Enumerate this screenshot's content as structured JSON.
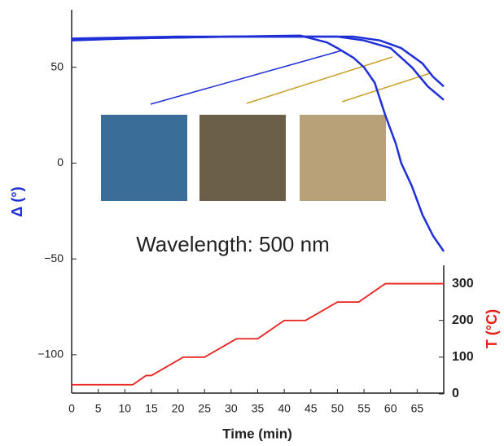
{
  "chart_data": {
    "type": "line",
    "annotation": "Wavelength: 500 nm",
    "xlabel": "Time (min)",
    "ylabel": "Δ (°)",
    "y2label": "T (°C)",
    "xlim": [
      0,
      70
    ],
    "xticks": [
      0,
      5,
      10,
      15,
      20,
      25,
      30,
      35,
      40,
      45,
      50,
      55,
      60,
      65
    ],
    "ylim": [
      -120,
      80
    ],
    "yticks": [
      {
        "value": -100,
        "label": "−100"
      },
      {
        "value": -50,
        "label": "−50"
      },
      0,
      50
    ],
    "y2lim": [
      0,
      350
    ],
    "y2ticks": [
      0,
      100,
      200,
      300
    ],
    "series": [
      {
        "color": "#1f2fd6",
        "x": [
          0,
          10,
          20,
          30,
          43,
          48,
          50,
          53,
          55,
          57,
          59,
          61,
          62,
          64,
          66,
          68,
          70
        ],
        "values": [
          65,
          65.5,
          66,
          66,
          66.5,
          63,
          60,
          55,
          50,
          42,
          25,
          10,
          0,
          -12,
          -27,
          -38,
          -46
        ]
      },
      {
        "color": "#1f2fd6",
        "x": [
          0,
          10,
          20,
          30,
          40,
          50,
          55,
          60,
          64,
          67,
          70
        ],
        "values": [
          64,
          65,
          65.5,
          66,
          66,
          66,
          64,
          60,
          50,
          40,
          33
        ]
      },
      {
        "color": "#1f2fd6",
        "x": [
          0,
          10,
          20,
          30,
          40,
          53,
          58,
          62,
          66,
          68,
          70
        ],
        "values": [
          64.5,
          65,
          65.5,
          66,
          66,
          66,
          64,
          60,
          52,
          45,
          40
        ]
      },
      {
        "color": "#e8201c",
        "axis": "y2",
        "x": [
          0,
          11.5,
          14,
          15,
          21,
          25,
          31,
          35,
          40,
          44,
          50,
          54,
          59,
          70
        ],
        "values": [
          25,
          25,
          50,
          50,
          100,
          100,
          150,
          150,
          200,
          200,
          250,
          250,
          300,
          300
        ]
      }
    ]
  }
}
